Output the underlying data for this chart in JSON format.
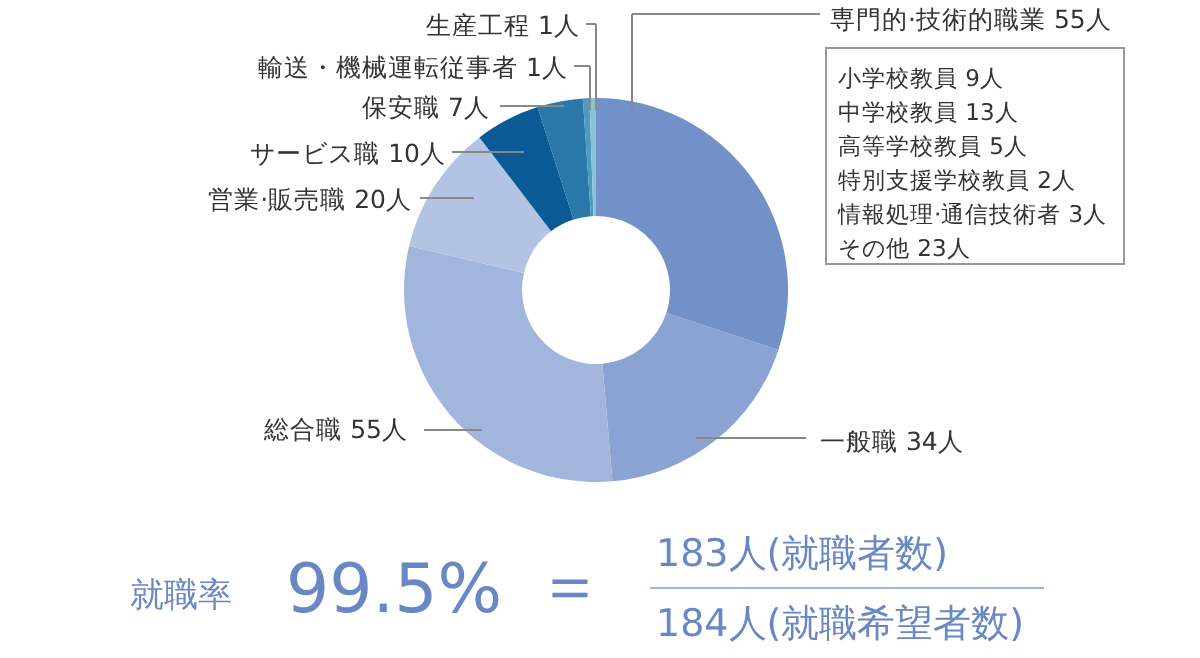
{
  "chart_data": {
    "type": "donut",
    "categories": [
      "専門的·技術的職業",
      "一般職",
      "総合職",
      "営業·販売職",
      "サービス職",
      "保安職",
      "輸送・機械運転従事者",
      "生産工程"
    ],
    "values": [
      55,
      34,
      55,
      20,
      10,
      7,
      1,
      1
    ],
    "value_labels": [
      "55人",
      "34人",
      "55人",
      "20人",
      "10人",
      "7人",
      "1人",
      "1人"
    ],
    "colors": [
      "#7191c8",
      "#8aa3d3",
      "#a2b5dd",
      "#b3c3e3",
      "#0a5a96",
      "#2a78aa",
      "#4f9ac0",
      "#8cc3d3"
    ],
    "annotations": [
      "小学校教員 9人",
      "中学校教員 13人",
      "高等学校教員 5人",
      "特別支援学校教員 2人",
      "情報処理·通信技術者 3人",
      "その他 23人",
      "就職率",
      "99.5%",
      "＝",
      "183人(就職者数)",
      "184人(就職希望者数)"
    ]
  }
}
